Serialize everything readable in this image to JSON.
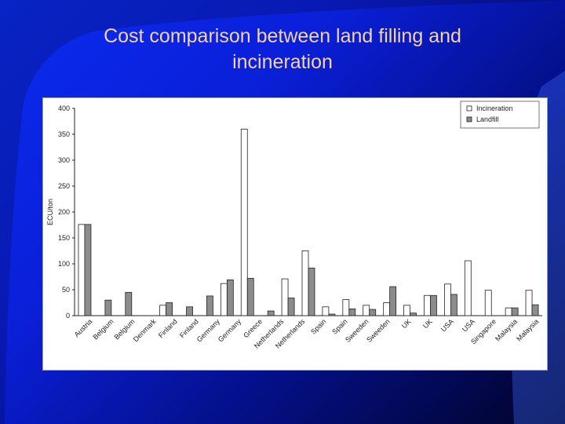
{
  "slide": {
    "title_line1": "Cost comparison between land filling and",
    "title_line2": "incineration"
  },
  "colors": {
    "background": "#0a2cf0",
    "title": "#f4d3a8",
    "incineration": "#ffffff",
    "landfill": "#8c8c8c"
  },
  "chart_data": {
    "type": "bar",
    "ylabel": "ECU/ton",
    "ylim": [
      0,
      400
    ],
    "yticks": [
      0,
      50,
      100,
      150,
      200,
      250,
      300,
      350,
      400
    ],
    "grid": false,
    "legend_position": "top-right",
    "categories": [
      "Austria",
      "Belgium",
      "Belgium",
      "Denmark",
      "Finland",
      "Finland",
      "Germany",
      "Germany",
      "Greece",
      "Netherlands",
      "Netherlands",
      "Spain",
      "Spain",
      "Sweeden",
      "Sweeden",
      "UK",
      "UK",
      "USA",
      "USA",
      "Singapore",
      "Malaysia",
      "Malaysia"
    ],
    "series": [
      {
        "name": "Incineration",
        "values": [
          176,
          0,
          0,
          0,
          20,
          0,
          0,
          62,
          360,
          0,
          71,
          125,
          17,
          31,
          20,
          25,
          20,
          39,
          61,
          106,
          49,
          15
        ]
      },
      {
        "name": "Landfill",
        "values": [
          176,
          30,
          45,
          0,
          25,
          17,
          38,
          69,
          72,
          9,
          34,
          92,
          3,
          13,
          12,
          56,
          5,
          39,
          41,
          0,
          0,
          15
        ]
      }
    ],
    "extra_bars": [
      {
        "after_category": "Malaysia",
        "incineration": 49,
        "landfill": 21
      }
    ]
  }
}
